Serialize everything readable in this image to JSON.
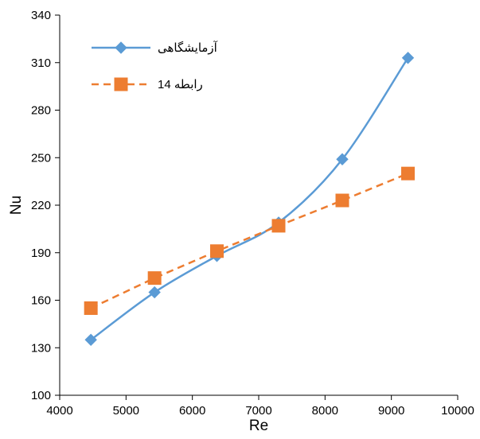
{
  "chart_data": {
    "type": "line",
    "title": "",
    "xlabel": "Re",
    "ylabel": "Nu",
    "xlim": [
      4000,
      10000
    ],
    "ylim": [
      100,
      340
    ],
    "xticks": [
      4000,
      5000,
      6000,
      7000,
      8000,
      9000,
      10000
    ],
    "yticks": [
      100,
      130,
      160,
      190,
      220,
      250,
      280,
      310,
      340
    ],
    "grid": false,
    "legend_position": "top-left",
    "series": [
      {
        "name": "آزمایشگاهی",
        "color": "#5B9BD5",
        "marker": "diamond",
        "line_style": "solid",
        "smooth": true,
        "x": [
          4470,
          5430,
          6370,
          7300,
          8260,
          9250
        ],
        "y": [
          135,
          165,
          188,
          209,
          249,
          313
        ]
      },
      {
        "name": "رابطه 14",
        "color": "#ED7D31",
        "marker": "square",
        "line_style": "dashed",
        "smooth": false,
        "x": [
          4470,
          5430,
          6370,
          7300,
          8260,
          9250
        ],
        "y": [
          155,
          174,
          191,
          207,
          223,
          240
        ]
      }
    ]
  }
}
